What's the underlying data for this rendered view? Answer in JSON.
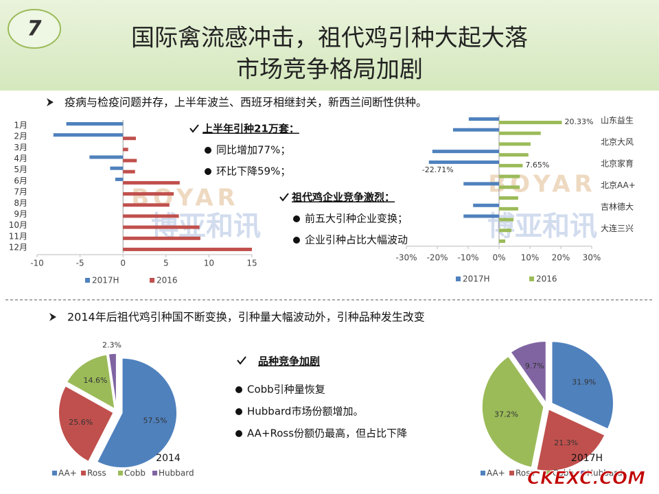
{
  "slide_number": "7",
  "title": [
    "国际禽流感冲击，祖代鸡引种大起大落",
    "市场竞争格局加剧"
  ],
  "bullets": [
    "疫病与检疫问题并存，上半年波兰、西班牙相继封关，新西兰间断性供种。",
    "2014年后祖代鸡引种国不断变换，引种量大幅波动外，引种品种发生改变"
  ],
  "callouts": [
    {
      "heading": "上半年引种21万套：",
      "items": [
        "同比增加77%；",
        "环比下降59%；"
      ]
    },
    {
      "heading": "祖代鸡企业竞争激烈：",
      "items": [
        "前五大引种企业变换；",
        "企业引种占比大幅波动"
      ]
    },
    {
      "heading": "品种竞争加剧",
      "items": [
        "Cobb引种量恢复",
        "Hubbard市场份额增加。",
        "AA+Ross份额仍最高，但占比下降"
      ]
    }
  ],
  "watermark": [
    "BOYAR",
    "博亚和讯"
  ],
  "logo": "CKEXC.COM",
  "chart_data": [
    {
      "type": "hbar",
      "categories": [
        "1月",
        "2月",
        "3月",
        "4月",
        "5月",
        "6月",
        "7月",
        "8月",
        "9月",
        "10月",
        "11月",
        "12月"
      ],
      "series": [
        {
          "name": "2017H",
          "color": "#4f81bd",
          "values": [
            -6.6,
            -8.1,
            null,
            -3.9,
            -1.5,
            -0.9,
            null,
            null,
            null,
            null,
            null,
            null
          ]
        },
        {
          "name": "2016",
          "color": "#c0504d",
          "values": [
            0,
            1.5,
            0.6,
            1.6,
            1.4,
            6.6,
            5.9,
            5.4,
            6.5,
            8.9,
            9.0,
            15.0
          ]
        }
      ],
      "xlim": [
        -10,
        15
      ],
      "xticks": [
        -10,
        -5,
        0,
        5,
        10,
        15
      ],
      "legend": "bottom"
    },
    {
      "type": "hbar",
      "categories": [
        "山东益生",
        null,
        "北京大风",
        null,
        "北京家育",
        null,
        "北京AA+",
        null,
        "吉林德大",
        null,
        "大连三兴",
        null
      ],
      "series": [
        {
          "name": "2017H",
          "color": "#4f81bd",
          "values": [
            -9.8,
            -14.9,
            null,
            -21.6,
            -22.71,
            null,
            -11.5,
            null,
            -8.4,
            -11.5,
            null,
            null
          ],
          "value_labels": [
            null,
            null,
            null,
            null,
            "-22.71%",
            null,
            null,
            null,
            null,
            null,
            null,
            null
          ]
        },
        {
          "name": "2016",
          "color": "#9bbb59",
          "values": [
            20.33,
            13.5,
            10.2,
            9.5,
            7.65,
            6.7,
            6.7,
            6.2,
            6.2,
            4.7,
            4.0,
            2.0
          ],
          "value_labels": [
            "20.33%",
            null,
            null,
            null,
            "7.65%",
            null,
            null,
            null,
            null,
            null,
            null,
            null
          ]
        }
      ],
      "xlim": [
        -30,
        30
      ],
      "xticks": [
        {
          "value": -30,
          "label": "-30%"
        },
        {
          "value": -20,
          "label": "-20%"
        },
        {
          "value": -10,
          "label": "-10%"
        },
        {
          "value": 0,
          "label": "0%"
        },
        {
          "value": 10,
          "label": "10%"
        },
        {
          "value": 20,
          "label": "20%"
        },
        {
          "value": 30,
          "label": "30%"
        }
      ],
      "legend": "bottom"
    },
    {
      "type": "pie",
      "title": "2014",
      "categories": [
        "AA+",
        "Ross",
        "Cobb",
        "Hubbard"
      ],
      "values": [
        57.5,
        25.6,
        14.6,
        2.3
      ],
      "value_labels": [
        "57.5%",
        "25.6%",
        "14.6%",
        "2.3%"
      ],
      "colors": [
        "#4f81bd",
        "#c0504d",
        "#9bbb59",
        "#8064a2"
      ],
      "legend": "bottom"
    },
    {
      "type": "pie",
      "title": "2017H",
      "categories": [
        "AA+",
        "Ross",
        "Cobb",
        "Hubbard"
      ],
      "values": [
        31.9,
        21.3,
        37.2,
        9.7
      ],
      "value_labels": [
        "31.9%",
        "21.3%",
        "37.2%",
        "9.7%"
      ],
      "colors": [
        "#4f81bd",
        "#c0504d",
        "#9bbb59",
        "#8064a2"
      ],
      "legend": "bottom"
    }
  ]
}
